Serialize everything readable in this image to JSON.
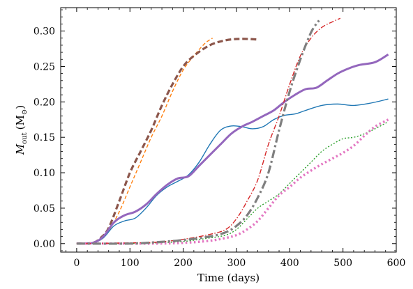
{
  "chart_data": {
    "type": "line",
    "title": "",
    "xlabel": "Time (days)",
    "ylabel_main": "M",
    "ylabel_sub": "out",
    "ylabel_unit_open": "(M",
    "ylabel_unit_sub": "⊙",
    "ylabel_unit_close": ")",
    "xlim": [
      -30,
      600
    ],
    "ylim": [
      -0.012,
      0.333
    ],
    "xticks": [
      0,
      100,
      200,
      300,
      400,
      500,
      600
    ],
    "xtick_labels": [
      "0",
      "100",
      "200",
      "300",
      "400",
      "500",
      "600"
    ],
    "yticks": [
      0.0,
      0.05,
      0.1,
      0.15,
      0.2,
      0.25,
      0.3
    ],
    "ytick_labels": [
      "0.00",
      "0.05",
      "0.10",
      "0.15",
      "0.20",
      "0.25",
      "0.30"
    ],
    "grid": false,
    "legend": "none",
    "series": [
      {
        "color": "#ff7f0e",
        "width": 1.4,
        "dash": "5,3",
        "x": [
          0,
          30,
          45,
          60,
          80,
          100,
          120,
          140,
          160,
          180,
          200,
          220,
          240,
          255
        ],
        "y": [
          0,
          0.001,
          0.006,
          0.018,
          0.045,
          0.08,
          0.115,
          0.15,
          0.18,
          0.215,
          0.245,
          0.265,
          0.282,
          0.29
        ]
      },
      {
        "color": "#8c564b",
        "width": 3.2,
        "dash": "8,4",
        "x": [
          0,
          30,
          45,
          60,
          80,
          100,
          120,
          140,
          160,
          180,
          200,
          220,
          250,
          280,
          310,
          340
        ],
        "y": [
          0,
          0.001,
          0.008,
          0.022,
          0.06,
          0.1,
          0.13,
          0.16,
          0.195,
          0.225,
          0.25,
          0.265,
          0.28,
          0.287,
          0.289,
          0.288
        ]
      },
      {
        "color": "#1f77b4",
        "width": 1.4,
        "dash": "",
        "x": [
          0,
          30,
          50,
          70,
          90,
          110,
          130,
          150,
          170,
          190,
          210,
          230,
          250,
          270,
          290,
          310,
          330,
          350,
          370,
          390,
          410,
          430,
          460,
          490,
          520,
          550,
          585
        ],
        "y": [
          0,
          0.001,
          0.008,
          0.025,
          0.032,
          0.036,
          0.05,
          0.068,
          0.08,
          0.088,
          0.097,
          0.115,
          0.14,
          0.16,
          0.166,
          0.165,
          0.162,
          0.165,
          0.175,
          0.181,
          0.183,
          0.188,
          0.195,
          0.197,
          0.195,
          0.198,
          0.204
        ]
      },
      {
        "color": "#9467bd",
        "width": 3.0,
        "dash": "",
        "x": [
          0,
          30,
          50,
          70,
          90,
          110,
          130,
          150,
          170,
          190,
          210,
          230,
          250,
          270,
          290,
          310,
          330,
          350,
          370,
          390,
          410,
          430,
          450,
          470,
          490,
          510,
          530,
          560,
          585
        ],
        "y": [
          0,
          0.001,
          0.01,
          0.03,
          0.04,
          0.045,
          0.055,
          0.07,
          0.083,
          0.092,
          0.095,
          0.11,
          0.125,
          0.14,
          0.155,
          0.165,
          0.172,
          0.18,
          0.188,
          0.2,
          0.21,
          0.218,
          0.22,
          0.23,
          0.24,
          0.247,
          0.252,
          0.256,
          0.267
        ]
      },
      {
        "color": "#2ca02c",
        "width": 1.4,
        "dash": "2,2.5",
        "x": [
          0,
          50,
          100,
          150,
          200,
          250,
          280,
          300,
          320,
          340,
          360,
          380,
          400,
          420,
          440,
          460,
          480,
          500,
          520,
          540,
          560,
          585
        ],
        "y": [
          0,
          0,
          0,
          0.001,
          0.003,
          0.008,
          0.012,
          0.02,
          0.035,
          0.05,
          0.06,
          0.07,
          0.085,
          0.1,
          0.115,
          0.13,
          0.14,
          0.148,
          0.15,
          0.155,
          0.162,
          0.172
        ]
      },
      {
        "color": "#e377c2",
        "width": 3.4,
        "dash": "2.5,3.5",
        "x": [
          0,
          50,
          100,
          150,
          200,
          250,
          280,
          300,
          320,
          340,
          360,
          380,
          400,
          420,
          440,
          460,
          480,
          500,
          520,
          540,
          560,
          585
        ],
        "y": [
          0,
          0,
          0,
          0,
          0.001,
          0.004,
          0.008,
          0.012,
          0.02,
          0.032,
          0.05,
          0.068,
          0.08,
          0.093,
          0.103,
          0.112,
          0.12,
          0.128,
          0.138,
          0.152,
          0.165,
          0.175
        ]
      },
      {
        "color": "#d62728",
        "width": 1.4,
        "dash": "7,2.5,1.5,2.5",
        "x": [
          0,
          100,
          150,
          200,
          250,
          280,
          300,
          320,
          340,
          360,
          380,
          400,
          420,
          440,
          460,
          480,
          495
        ],
        "y": [
          0,
          0.001,
          0.002,
          0.006,
          0.013,
          0.02,
          0.035,
          0.06,
          0.09,
          0.14,
          0.18,
          0.225,
          0.265,
          0.29,
          0.305,
          0.313,
          0.318
        ]
      },
      {
        "color": "#7f7f7f",
        "width": 3.2,
        "dash": "12,4,3,4",
        "x": [
          0,
          100,
          150,
          200,
          250,
          280,
          300,
          320,
          340,
          360,
          380,
          400,
          420,
          440,
          455
        ],
        "y": [
          0,
          0,
          0.002,
          0.005,
          0.01,
          0.016,
          0.025,
          0.04,
          0.065,
          0.1,
          0.16,
          0.215,
          0.26,
          0.298,
          0.315
        ]
      }
    ]
  }
}
